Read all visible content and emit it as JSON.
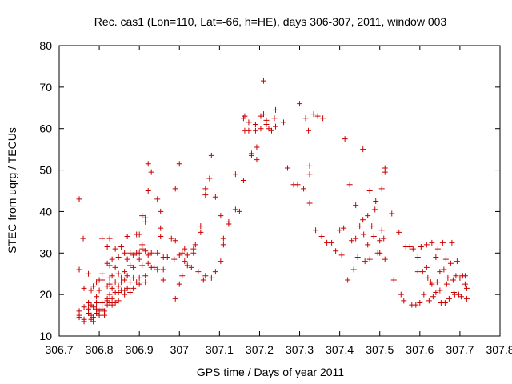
{
  "chart_data": {
    "type": "scatter",
    "title": "Rec. cas1 (Lon=110, Lat=-66, h=HE), days 306-307, 2011, window 003",
    "xlabel": "GPS time / Days of year 2011",
    "ylabel": "STEC from uqrg / TECUs",
    "xlim": [
      306.7,
      307.8
    ],
    "ylim": [
      10,
      80
    ],
    "xticks": [
      "306.7",
      "306.8",
      "306.9",
      "307",
      "307.1",
      "307.2",
      "307.3",
      "307.4",
      "307.5",
      "307.6",
      "307.7",
      "307.8"
    ],
    "yticks": [
      "10",
      "20",
      "30",
      "40",
      "50",
      "60",
      "70",
      "80"
    ],
    "grid": false,
    "legend": "none",
    "marker": "plus",
    "color": "#cc0000",
    "points": [
      [
        306.75,
        43.0
      ],
      [
        306.75,
        26.0
      ],
      [
        306.75,
        16.0
      ],
      [
        306.75,
        15.0
      ],
      [
        306.75,
        14.5
      ],
      [
        306.76,
        33.5
      ],
      [
        306.762,
        21.5
      ],
      [
        306.762,
        17.0
      ],
      [
        306.762,
        14.0
      ],
      [
        306.762,
        13.5
      ],
      [
        306.773,
        25.0
      ],
      [
        306.773,
        18.0
      ],
      [
        306.773,
        16.5
      ],
      [
        306.773,
        15.5
      ],
      [
        306.78,
        21.0
      ],
      [
        306.78,
        17.5
      ],
      [
        306.78,
        15.0
      ],
      [
        306.78,
        14.0
      ],
      [
        306.785,
        22.0
      ],
      [
        306.785,
        17.0
      ],
      [
        306.785,
        14.5
      ],
      [
        306.785,
        13.5
      ],
      [
        306.793,
        23.0
      ],
      [
        306.793,
        19.5
      ],
      [
        306.793,
        18.0
      ],
      [
        306.793,
        16.5
      ],
      [
        306.793,
        15.5
      ],
      [
        306.8,
        23.5
      ],
      [
        306.8,
        21.0
      ],
      [
        306.8,
        16.0
      ],
      [
        306.8,
        15.0
      ],
      [
        306.807,
        33.5
      ],
      [
        306.807,
        25.0
      ],
      [
        306.807,
        23.5
      ],
      [
        306.807,
        18.0
      ],
      [
        306.807,
        16.5
      ],
      [
        306.813,
        16.0
      ],
      [
        306.813,
        15.0
      ],
      [
        306.82,
        27.5
      ],
      [
        306.82,
        31.5
      ],
      [
        306.82,
        22.0
      ],
      [
        306.82,
        19.0
      ],
      [
        306.82,
        18.5
      ],
      [
        306.82,
        17.5
      ],
      [
        306.826,
        33.5
      ],
      [
        306.826,
        27.0
      ],
      [
        306.826,
        24.0
      ],
      [
        306.826,
        22.5
      ],
      [
        306.826,
        20.0
      ],
      [
        306.826,
        18.0
      ],
      [
        306.832,
        28.5
      ],
      [
        306.832,
        24.5
      ],
      [
        306.832,
        21.5
      ],
      [
        306.832,
        19.0
      ],
      [
        306.832,
        17.5
      ],
      [
        306.84,
        31.0
      ],
      [
        306.84,
        26.5
      ],
      [
        306.84,
        23.0
      ],
      [
        306.84,
        20.5
      ],
      [
        306.84,
        18.0
      ],
      [
        306.848,
        29.0
      ],
      [
        306.848,
        25.0
      ],
      [
        306.848,
        22.0
      ],
      [
        306.848,
        20.5
      ],
      [
        306.848,
        18.5
      ],
      [
        306.855,
        31.5
      ],
      [
        306.855,
        24.0
      ],
      [
        306.855,
        23.0
      ],
      [
        306.855,
        21.0
      ],
      [
        306.863,
        30.0
      ],
      [
        306.863,
        25.5
      ],
      [
        306.863,
        23.5
      ],
      [
        306.863,
        21.0
      ],
      [
        306.863,
        20.0
      ],
      [
        306.87,
        34.0
      ],
      [
        306.87,
        28.5
      ],
      [
        306.87,
        24.5
      ],
      [
        306.87,
        21.5
      ],
      [
        306.877,
        30.0
      ],
      [
        306.877,
        27.0
      ],
      [
        306.877,
        23.0
      ],
      [
        306.877,
        20.5
      ],
      [
        306.885,
        29.5
      ],
      [
        306.885,
        26.5
      ],
      [
        306.885,
        24.0
      ],
      [
        306.885,
        21.5
      ],
      [
        306.893,
        34.5
      ],
      [
        306.893,
        30.0
      ],
      [
        306.893,
        23.0
      ],
      [
        306.9,
        34.5
      ],
      [
        306.9,
        30.0
      ],
      [
        306.9,
        28.5
      ],
      [
        306.9,
        24.0
      ],
      [
        306.9,
        22.5
      ],
      [
        306.907,
        39.0
      ],
      [
        306.907,
        32.0
      ],
      [
        306.907,
        31.0
      ],
      [
        306.907,
        27.0
      ],
      [
        306.915,
        38.5
      ],
      [
        306.915,
        37.5
      ],
      [
        306.915,
        30.5
      ],
      [
        306.915,
        24.5
      ],
      [
        306.915,
        23.0
      ],
      [
        306.922,
        51.5
      ],
      [
        306.922,
        45.0
      ],
      [
        306.922,
        29.5
      ],
      [
        306.922,
        27.5
      ],
      [
        306.93,
        49.5
      ],
      [
        306.93,
        30.0
      ],
      [
        306.93,
        26.5
      ],
      [
        306.937,
        26.5
      ],
      [
        306.945,
        43.0
      ],
      [
        306.945,
        30.0
      ],
      [
        306.945,
        26.0
      ],
      [
        306.953,
        40.0
      ],
      [
        306.953,
        36.0
      ],
      [
        306.953,
        34.0
      ],
      [
        306.96,
        29.0
      ],
      [
        306.96,
        26.0
      ],
      [
        306.96,
        23.5
      ],
      [
        306.97,
        29.0
      ],
      [
        306.98,
        33.5
      ],
      [
        306.987,
        28.5
      ],
      [
        306.99,
        45.5
      ],
      [
        306.99,
        33.0
      ],
      [
        306.99,
        19.0
      ],
      [
        307.0,
        51.5
      ],
      [
        307.0,
        29.5
      ],
      [
        307.0,
        22.5
      ],
      [
        307.007,
        30.0
      ],
      [
        307.007,
        24.5
      ],
      [
        307.013,
        31.0
      ],
      [
        307.013,
        28.0
      ],
      [
        307.02,
        29.5
      ],
      [
        307.02,
        27.0
      ],
      [
        307.03,
        26.5
      ],
      [
        307.035,
        31.0
      ],
      [
        307.035,
        30.0
      ],
      [
        307.04,
        32.0
      ],
      [
        307.047,
        25.5
      ],
      [
        307.053,
        36.5
      ],
      [
        307.053,
        35.0
      ],
      [
        307.06,
        23.5
      ],
      [
        307.065,
        45.5
      ],
      [
        307.065,
        44.0
      ],
      [
        307.065,
        24.5
      ],
      [
        307.075,
        48.0
      ],
      [
        307.08,
        53.5
      ],
      [
        307.08,
        24.0
      ],
      [
        307.09,
        43.5
      ],
      [
        307.09,
        25.5
      ],
      [
        307.103,
        39.0
      ],
      [
        307.103,
        28.0
      ],
      [
        307.11,
        33.5
      ],
      [
        307.11,
        32.0
      ],
      [
        307.123,
        37.5
      ],
      [
        307.123,
        37.0
      ],
      [
        307.14,
        49.0
      ],
      [
        307.14,
        40.5
      ],
      [
        307.15,
        40.0
      ],
      [
        307.16,
        47.5
      ],
      [
        307.16,
        62.5
      ],
      [
        307.163,
        63.0
      ],
      [
        307.163,
        59.5
      ],
      [
        307.173,
        61.5
      ],
      [
        307.173,
        59.5
      ],
      [
        307.18,
        54.0
      ],
      [
        307.18,
        53.5
      ],
      [
        307.19,
        61.0
      ],
      [
        307.19,
        59.5
      ],
      [
        307.193,
        55.5
      ],
      [
        307.193,
        52.5
      ],
      [
        307.203,
        63.0
      ],
      [
        307.203,
        60.0
      ],
      [
        307.21,
        71.5
      ],
      [
        307.21,
        63.5
      ],
      [
        307.217,
        62.0
      ],
      [
        307.217,
        61.0
      ],
      [
        307.223,
        60.0
      ],
      [
        307.23,
        59.5
      ],
      [
        307.237,
        62.5
      ],
      [
        307.24,
        60.5
      ],
      [
        307.24,
        64.5
      ],
      [
        307.26,
        61.5
      ],
      [
        307.27,
        50.5
      ],
      [
        307.285,
        46.5
      ],
      [
        307.295,
        46.5
      ],
      [
        307.3,
        66.0
      ],
      [
        307.31,
        45.5
      ],
      [
        307.315,
        62.5
      ],
      [
        307.322,
        59.5
      ],
      [
        307.325,
        51.0
      ],
      [
        307.325,
        49.0
      ],
      [
        307.325,
        42.0
      ],
      [
        307.335,
        63.5
      ],
      [
        307.34,
        35.5
      ],
      [
        307.345,
        63.0
      ],
      [
        307.355,
        34.0
      ],
      [
        307.358,
        62.5
      ],
      [
        307.368,
        32.5
      ],
      [
        307.38,
        32.5
      ],
      [
        307.39,
        30.5
      ],
      [
        307.4,
        35.5
      ],
      [
        307.405,
        29.5
      ],
      [
        307.41,
        36.0
      ],
      [
        307.413,
        57.5
      ],
      [
        307.42,
        23.5
      ],
      [
        307.425,
        46.5
      ],
      [
        307.43,
        33.0
      ],
      [
        307.435,
        26.0
      ],
      [
        307.44,
        33.5
      ],
      [
        307.44,
        41.5
      ],
      [
        307.445,
        29.0
      ],
      [
        307.45,
        36.5
      ],
      [
        307.458,
        55.0
      ],
      [
        307.458,
        38.0
      ],
      [
        307.46,
        34.5
      ],
      [
        307.463,
        28.0
      ],
      [
        307.47,
        39.0
      ],
      [
        307.47,
        32.0
      ],
      [
        307.475,
        45.0
      ],
      [
        307.475,
        28.5
      ],
      [
        307.48,
        36.5
      ],
      [
        307.485,
        34.0
      ],
      [
        307.488,
        40.5
      ],
      [
        307.49,
        42.5
      ],
      [
        307.495,
        30.0
      ],
      [
        307.5,
        33.0
      ],
      [
        307.5,
        30.0
      ],
      [
        307.505,
        35.5
      ],
      [
        307.505,
        45.5
      ],
      [
        307.51,
        33.5
      ],
      [
        307.513,
        49.5
      ],
      [
        307.513,
        50.5
      ],
      [
        307.513,
        28.5
      ],
      [
        307.53,
        39.5
      ],
      [
        307.535,
        23.5
      ],
      [
        307.548,
        35.0
      ],
      [
        307.553,
        20.0
      ],
      [
        307.56,
        18.5
      ],
      [
        307.565,
        31.5
      ],
      [
        307.575,
        31.5
      ],
      [
        307.58,
        17.5
      ],
      [
        307.583,
        31.0
      ],
      [
        307.59,
        17.5
      ],
      [
        307.595,
        25.5
      ],
      [
        307.595,
        29.0
      ],
      [
        307.6,
        18.0
      ],
      [
        307.603,
        31.5
      ],
      [
        307.607,
        25.5
      ],
      [
        307.61,
        20.0
      ],
      [
        307.617,
        32.0
      ],
      [
        307.617,
        26.5
      ],
      [
        307.62,
        24.0
      ],
      [
        307.623,
        18.5
      ],
      [
        307.627,
        23.0
      ],
      [
        307.63,
        22.5
      ],
      [
        307.63,
        32.5
      ],
      [
        307.633,
        19.5
      ],
      [
        307.64,
        20.5
      ],
      [
        307.64,
        29.0
      ],
      [
        307.643,
        23.0
      ],
      [
        307.645,
        31.0
      ],
      [
        307.65,
        25.5
      ],
      [
        307.65,
        21.0
      ],
      [
        307.653,
        18.0
      ],
      [
        307.657,
        32.5
      ],
      [
        307.66,
        26.0
      ],
      [
        307.663,
        18.0
      ],
      [
        307.665,
        28.5
      ],
      [
        307.667,
        22.5
      ],
      [
        307.67,
        24.0
      ],
      [
        307.673,
        19.0
      ],
      [
        307.677,
        27.5
      ],
      [
        307.68,
        32.5
      ],
      [
        307.683,
        23.5
      ],
      [
        307.685,
        20.5
      ],
      [
        307.687,
        20.0
      ],
      [
        307.69,
        24.5
      ],
      [
        307.693,
        28.0
      ],
      [
        307.697,
        20.0
      ],
      [
        307.7,
        24.0
      ],
      [
        307.703,
        19.5
      ],
      [
        307.707,
        24.5
      ],
      [
        307.713,
        22.5
      ],
      [
        307.713,
        24.5
      ],
      [
        307.717,
        21.5
      ],
      [
        307.717,
        19.0
      ]
    ]
  }
}
